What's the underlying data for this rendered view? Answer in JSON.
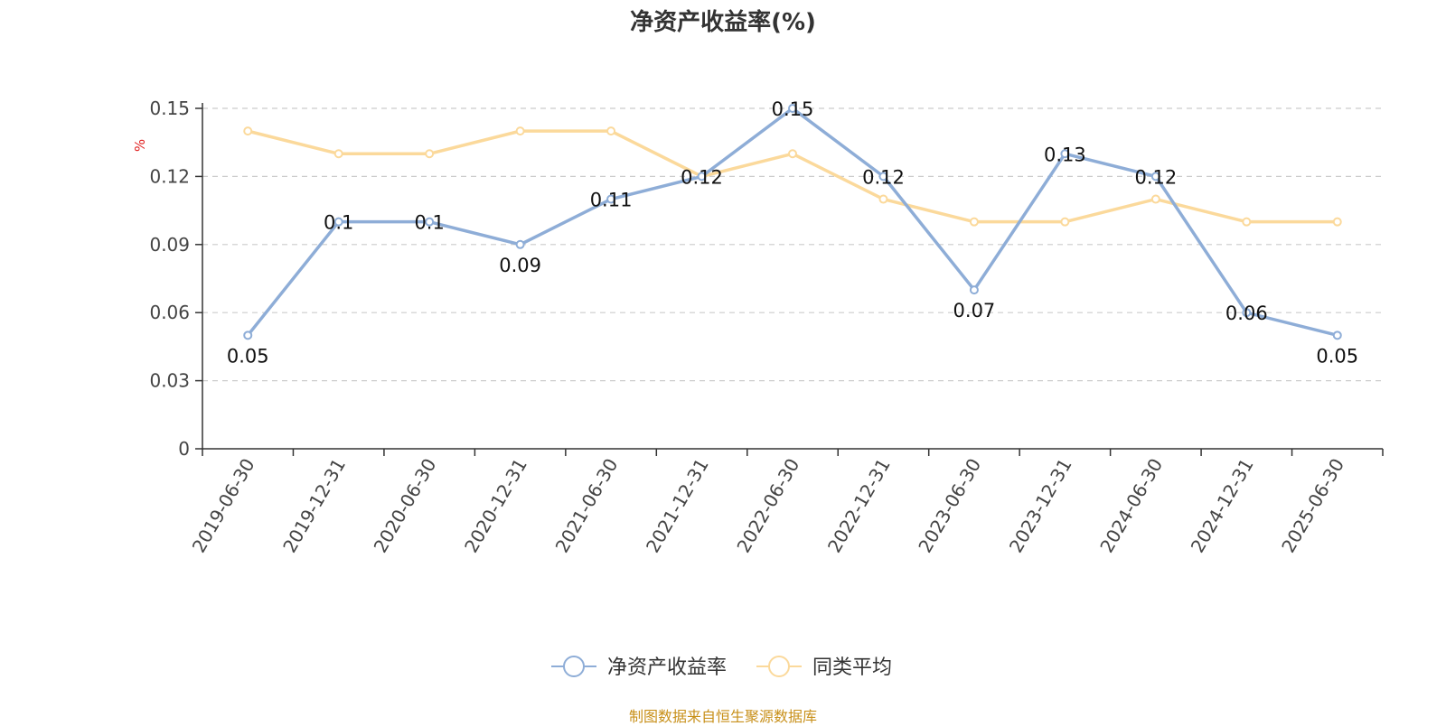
{
  "chart_data": {
    "type": "line",
    "title": "净资产收益率(%)",
    "ylabel": "%",
    "categories": [
      "2019-06-30",
      "2019-12-31",
      "2020-06-30",
      "2020-12-31",
      "2021-06-30",
      "2021-12-31",
      "2022-06-30",
      "2022-12-31",
      "2023-06-30",
      "2023-12-31",
      "2024-06-30",
      "2024-12-31",
      "2025-06-30"
    ],
    "ylim": [
      0,
      0.15
    ],
    "yticks": [
      "0",
      "0.03",
      "0.06",
      "0.09",
      "0.12",
      "0.15"
    ],
    "grid": true,
    "legend_position": "bottom-center",
    "series": [
      {
        "name": "净资产收益率",
        "color": "#8eadd7",
        "show_labels": true,
        "values": [
          0.05,
          0.1,
          0.1,
          0.09,
          0.11,
          0.12,
          0.15,
          0.12,
          0.07,
          0.13,
          0.12,
          0.06,
          0.05
        ],
        "labels": [
          "0.05",
          "0.1",
          "0.1",
          "0.09",
          "0.11",
          "0.12",
          "0.15",
          "0.12",
          "0.07",
          "0.13",
          "0.12",
          "0.06",
          "0.05"
        ]
      },
      {
        "name": "同类平均",
        "color": "#fbd99b",
        "show_labels": false,
        "values": [
          0.14,
          0.13,
          0.13,
          0.14,
          0.14,
          0.12,
          0.13,
          0.11,
          0.1,
          0.1,
          0.11,
          0.1,
          0.1
        ]
      }
    ]
  },
  "footer": {
    "source": "制图数据来自恒生聚源数据库"
  }
}
